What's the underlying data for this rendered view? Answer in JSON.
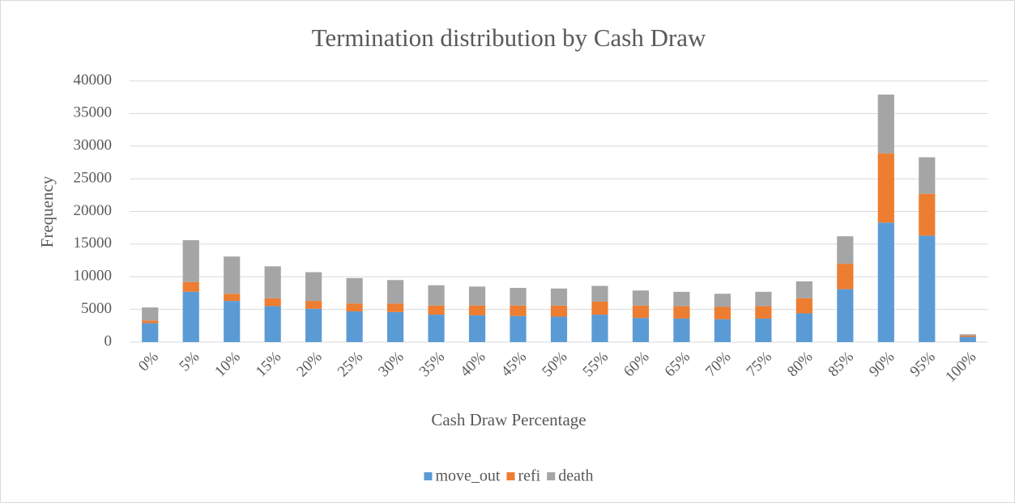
{
  "chart_data": {
    "type": "stacked_bar",
    "title": "Termination distribution by Cash Draw",
    "x_label": "Cash Draw Percentage",
    "y_label": "Frequency",
    "categories": [
      "0%",
      "5%",
      "10%",
      "15%",
      "20%",
      "25%",
      "30%",
      "35%",
      "40%",
      "45%",
      "50%",
      "55%",
      "60%",
      "65%",
      "70%",
      "75%",
      "80%",
      "85%",
      "90%",
      "95%",
      "100%"
    ],
    "series": [
      {
        "name": "move_out",
        "color": "#5b9bd5",
        "values": [
          2900,
          7700,
          6300,
          5500,
          5100,
          4700,
          4600,
          4200,
          4100,
          4000,
          3900,
          4200,
          3700,
          3600,
          3500,
          3600,
          4400,
          8100,
          18300,
          16300,
          800
        ]
      },
      {
        "name": "refi",
        "color": "#ed7d31",
        "values": [
          400,
          1500,
          1100,
          1200,
          1200,
          1200,
          1300,
          1400,
          1500,
          1600,
          1700,
          2000,
          1900,
          1900,
          1900,
          1900,
          2300,
          3900,
          10600,
          6400,
          200
        ]
      },
      {
        "name": "death",
        "color": "#a5a5a5",
        "values": [
          2000,
          6400,
          5700,
          4900,
          4400,
          3900,
          3600,
          3100,
          2900,
          2700,
          2600,
          2400,
          2300,
          2200,
          2000,
          2200,
          2600,
          4200,
          9000,
          5600,
          200
        ]
      }
    ],
    "ylim": [
      0,
      40000
    ],
    "yticks": [
      0,
      5000,
      10000,
      15000,
      20000,
      25000,
      30000,
      35000,
      40000
    ],
    "grid": true,
    "legend": "bottom"
  }
}
